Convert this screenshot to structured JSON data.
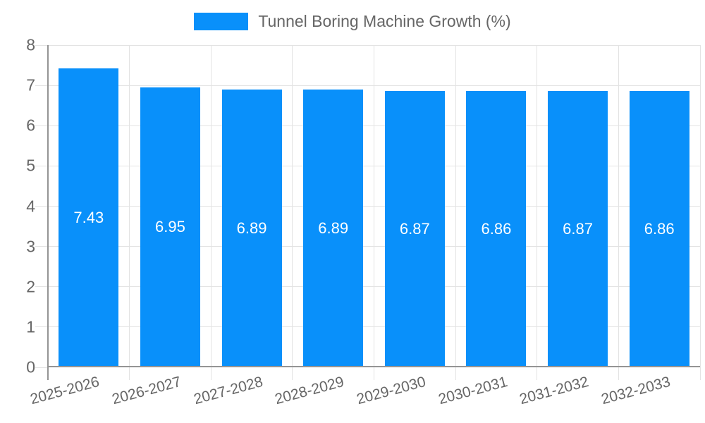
{
  "legend": {
    "label": "Tunnel Boring Machine Growth (%)"
  },
  "chart_data": {
    "type": "bar",
    "title": "Tunnel Boring Machine Growth (%)",
    "categories": [
      "2025-2026",
      "2026-2027",
      "2027-2028",
      "2028-2029",
      "2029-2030",
      "2030-2031",
      "2031-2032",
      "2032-2033"
    ],
    "values": [
      7.43,
      6.95,
      6.89,
      6.89,
      6.87,
      6.86,
      6.87,
      6.86
    ],
    "value_labels": [
      "7.43",
      "6.95",
      "6.89",
      "6.89",
      "6.87",
      "6.86",
      "6.87",
      "6.86"
    ],
    "xlabel": "",
    "ylabel": "",
    "ylim": [
      0,
      8
    ],
    "yticks": [
      "0",
      "1",
      "2",
      "3",
      "4",
      "5",
      "6",
      "7",
      "8"
    ],
    "grid": true,
    "legend_position": "top",
    "bar_color": "#0990FA",
    "value_label_color": "#ffffff",
    "axis_label_color": "#666666",
    "axis_line_color": "#949494",
    "grid_color": "#e3e3e3"
  }
}
